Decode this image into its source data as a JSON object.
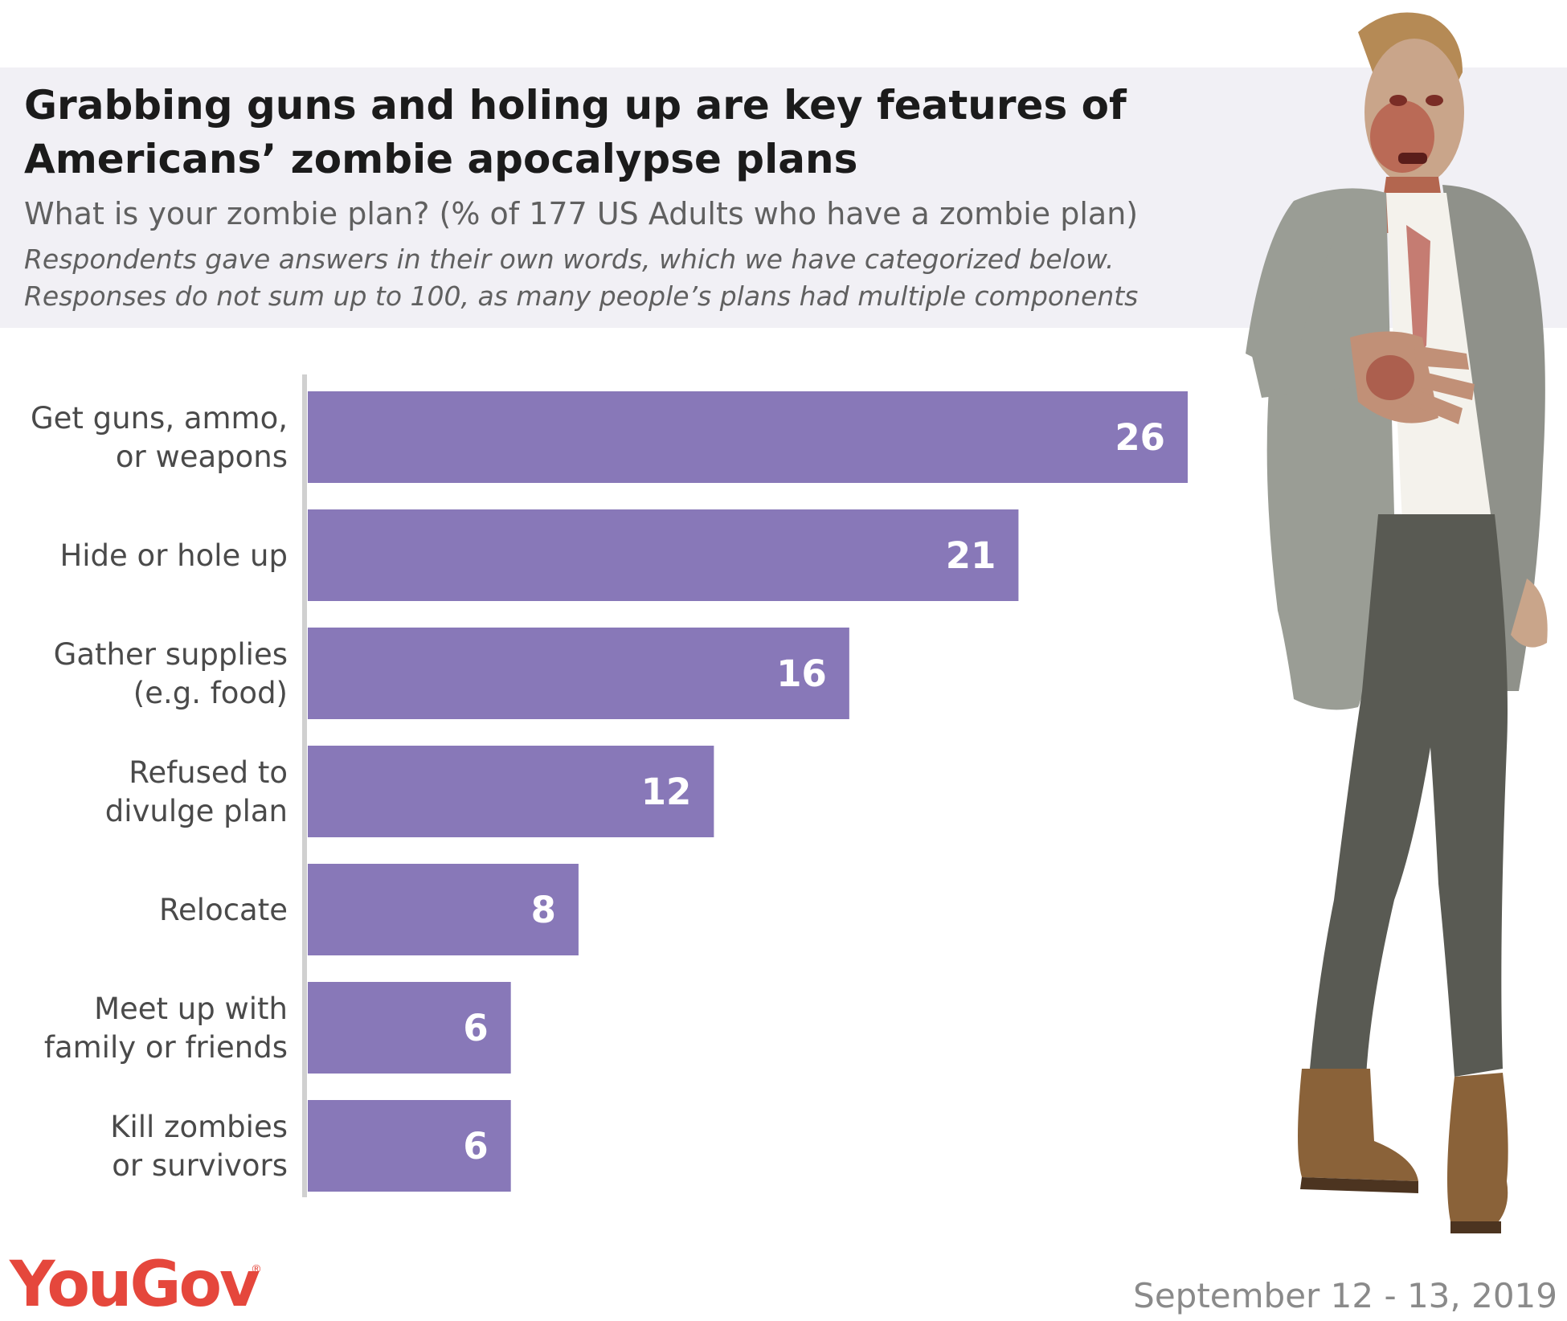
{
  "header": {
    "title": "Grabbing guns and holing up are key features of Americans’ zombie apocalypse plans",
    "subtitle": "What is your zombie plan? (% of 177 US Adults who have a zombie plan)",
    "note_lines": [
      "Respondents gave answers in their own words, which we have categorized below.",
      "Responses do not sum up to 100, as many people’s plans had multiple components"
    ]
  },
  "chart_data": {
    "type": "bar",
    "orientation": "horizontal",
    "categories": [
      [
        "Get guns, ammo,",
        "or weapons"
      ],
      [
        "Hide or hole up"
      ],
      [
        "Gather supplies",
        "(e.g. food)"
      ],
      [
        "Refused to",
        "divulge plan"
      ],
      [
        "Relocate"
      ],
      [
        "Meet up with",
        "family or friends"
      ],
      [
        "Kill zombies",
        "or survivors"
      ]
    ],
    "values": [
      26,
      21,
      16,
      12,
      8,
      6,
      6
    ],
    "data_labels": [
      "26",
      "21",
      "16",
      "12",
      "8",
      "6",
      "6"
    ],
    "xlim": [
      0,
      26
    ],
    "grid": false,
    "legend": "none"
  },
  "colors": {
    "bar": "#8878b8",
    "axis": "#d0d0d0",
    "header_bg": "#f1f0f5",
    "brand": "#e5473c"
  },
  "footer": {
    "logo": "YouGov",
    "logo_mark": "®",
    "date": "September 12 - 13, 2019"
  },
  "illustration": {
    "icon": "zombie-figure-icon"
  }
}
